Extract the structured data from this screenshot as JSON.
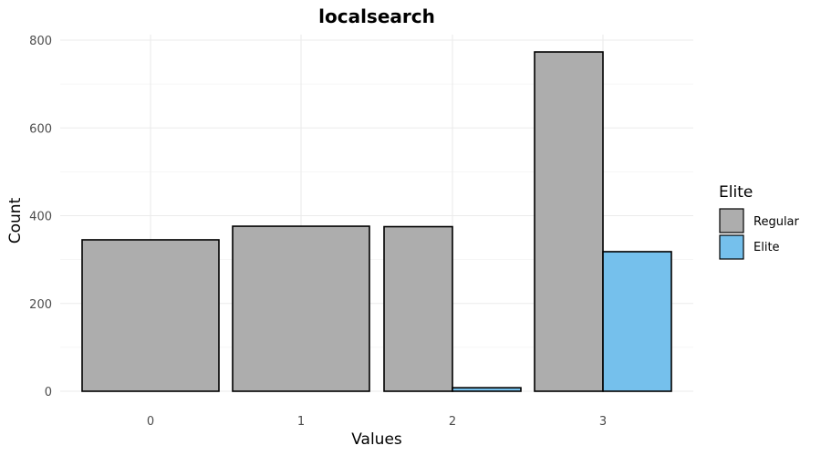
{
  "chart_data": {
    "type": "bar",
    "title": "localsearch",
    "xlabel": "Values",
    "ylabel": "Count",
    "categories": [
      "0",
      "1",
      "2",
      "3"
    ],
    "ylim": [
      0,
      810
    ],
    "yticks": [
      0,
      200,
      400,
      600,
      800
    ],
    "series": [
      {
        "name": "Regular",
        "values": [
          345,
          376,
          375,
          773
        ],
        "color": "#adadad"
      },
      {
        "name": "Elite",
        "values": [
          0,
          0,
          8,
          318
        ],
        "color": "#75c0ec"
      }
    ],
    "legend": {
      "title": "Elite",
      "position": "right"
    },
    "grid": true
  }
}
